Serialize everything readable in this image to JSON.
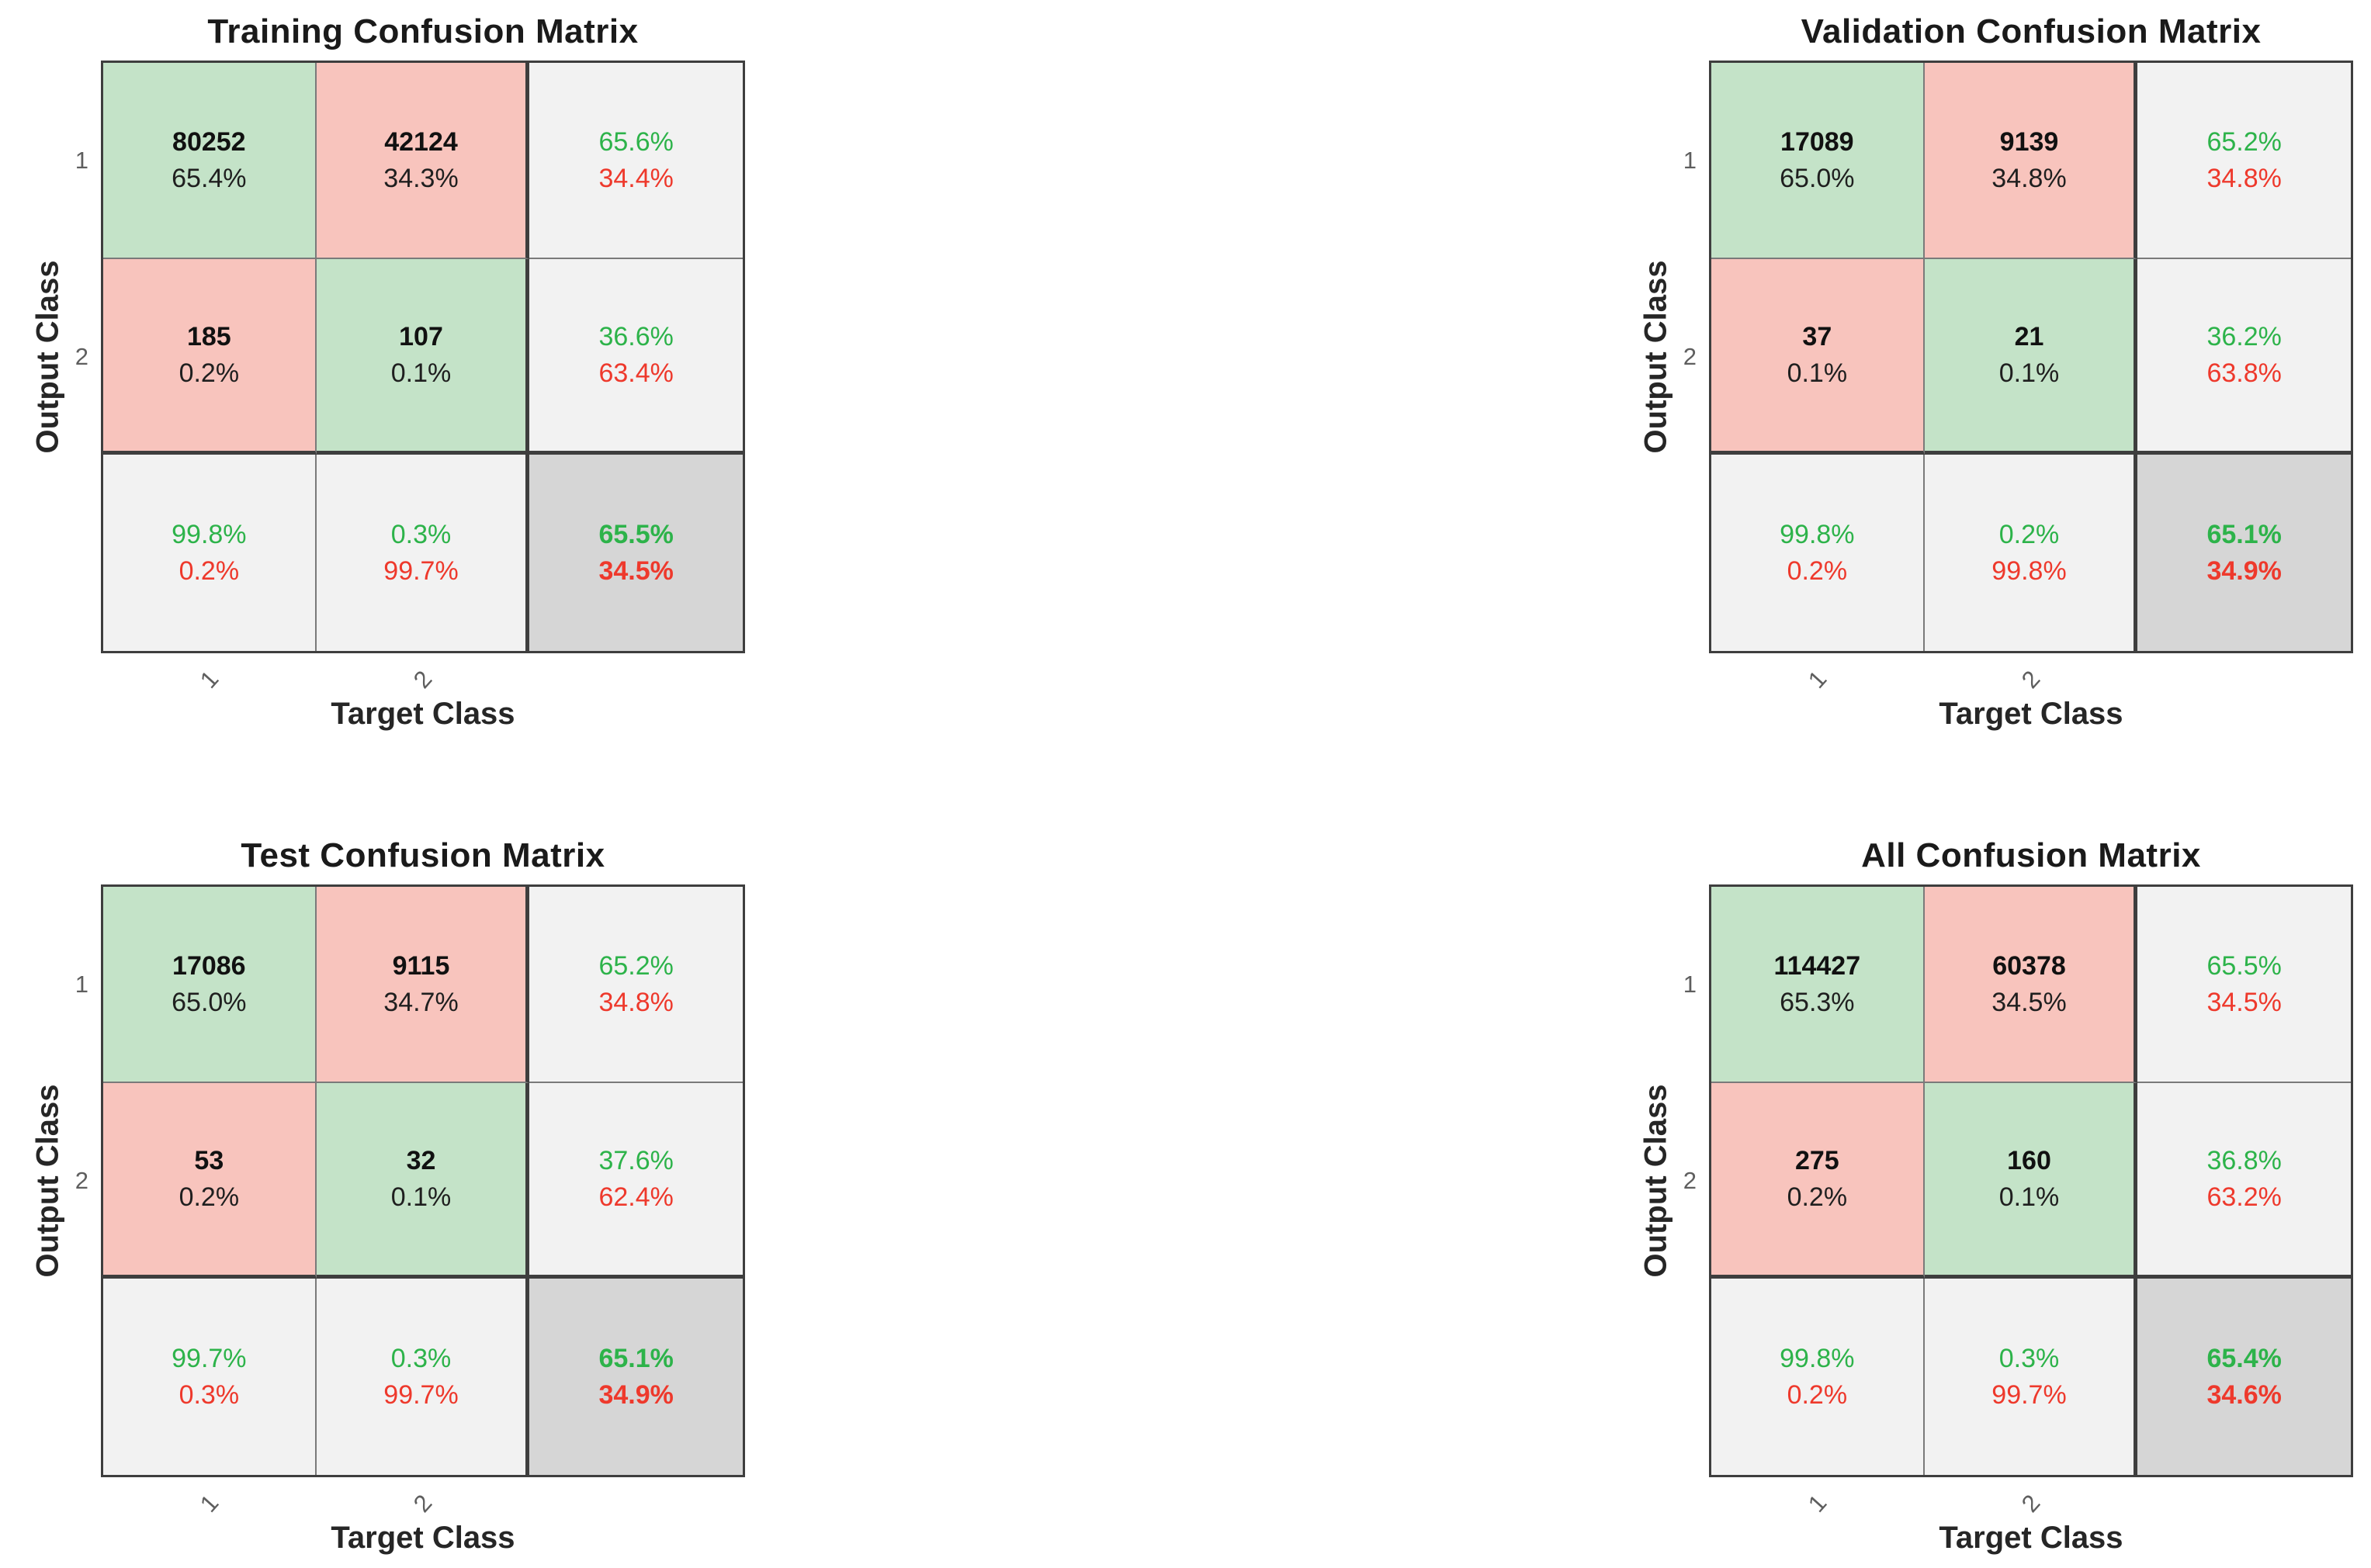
{
  "figure": {
    "background": "#ffffff",
    "description_titles": [
      "Training Confusion Matrix",
      "Validation Confusion Matrix",
      "Test Confusion Matrix",
      "All Confusion Matrix"
    ]
  },
  "colors": {
    "cell_correct_green": "#c4e3c8",
    "cell_incorrect_pink": "#f8c4bd",
    "cell_summary_gray": "#f2f2f2",
    "cell_total_gray": "#d6d6d6",
    "text_green": "#2db34a",
    "text_red": "#ee392c",
    "text_black": "#1a1a1a",
    "tick_gray": "#5e5e5e",
    "grid_line_thin": "#7a7a7a",
    "grid_line_thick": "#3e3e3e"
  },
  "matrices": [
    {
      "title": "Training Confusion Matrix",
      "xlabel": "Target Class",
      "ylabel": "Output Class",
      "row_ticks": [
        "1",
        "2"
      ],
      "col_ticks": [
        "1",
        "2"
      ],
      "cells": [
        {
          "line1": "80252",
          "line2": "65.4%"
        },
        {
          "line1": "42124",
          "line2": "34.3%"
        },
        {
          "line1": "65.6%",
          "line2": "34.4%"
        },
        {
          "line1": "185",
          "line2": "0.2%"
        },
        {
          "line1": "107",
          "line2": "0.1%"
        },
        {
          "line1": "36.6%",
          "line2": "63.4%"
        },
        {
          "line1": "99.8%",
          "line2": "0.2%"
        },
        {
          "line1": "0.3%",
          "line2": "99.7%"
        },
        {
          "line1": "65.5%",
          "line2": "34.5%"
        }
      ]
    },
    {
      "title": "Validation Confusion Matrix",
      "xlabel": "Target Class",
      "ylabel": "Output Class",
      "row_ticks": [
        "1",
        "2"
      ],
      "col_ticks": [
        "1",
        "2"
      ],
      "cells": [
        {
          "line1": "17089",
          "line2": "65.0%"
        },
        {
          "line1": "9139",
          "line2": "34.8%"
        },
        {
          "line1": "65.2%",
          "line2": "34.8%"
        },
        {
          "line1": "37",
          "line2": "0.1%"
        },
        {
          "line1": "21",
          "line2": "0.1%"
        },
        {
          "line1": "36.2%",
          "line2": "63.8%"
        },
        {
          "line1": "99.8%",
          "line2": "0.2%"
        },
        {
          "line1": "0.2%",
          "line2": "99.8%"
        },
        {
          "line1": "65.1%",
          "line2": "34.9%"
        }
      ]
    },
    {
      "title": "Test Confusion Matrix",
      "xlabel": "Target Class",
      "ylabel": "Output Class",
      "row_ticks": [
        "1",
        "2"
      ],
      "col_ticks": [
        "1",
        "2"
      ],
      "cells": [
        {
          "line1": "17086",
          "line2": "65.0%"
        },
        {
          "line1": "9115",
          "line2": "34.7%"
        },
        {
          "line1": "65.2%",
          "line2": "34.8%"
        },
        {
          "line1": "53",
          "line2": "0.2%"
        },
        {
          "line1": "32",
          "line2": "0.1%"
        },
        {
          "line1": "37.6%",
          "line2": "62.4%"
        },
        {
          "line1": "99.7%",
          "line2": "0.3%"
        },
        {
          "line1": "0.3%",
          "line2": "99.7%"
        },
        {
          "line1": "65.1%",
          "line2": "34.9%"
        }
      ]
    },
    {
      "title": "All Confusion Matrix",
      "xlabel": "Target Class",
      "ylabel": "Output Class",
      "row_ticks": [
        "1",
        "2"
      ],
      "col_ticks": [
        "1",
        "2"
      ],
      "cells": [
        {
          "line1": "114427",
          "line2": "65.3%"
        },
        {
          "line1": "60378",
          "line2": "34.5%"
        },
        {
          "line1": "65.5%",
          "line2": "34.5%"
        },
        {
          "line1": "275",
          "line2": "0.2%"
        },
        {
          "line1": "160",
          "line2": "0.1%"
        },
        {
          "line1": "36.8%",
          "line2": "63.2%"
        },
        {
          "line1": "99.8%",
          "line2": "0.2%"
        },
        {
          "line1": "0.3%",
          "line2": "99.7%"
        },
        {
          "line1": "65.4%",
          "line2": "34.6%"
        }
      ]
    }
  ],
  "chart_data": [
    {
      "type": "heatmap",
      "title": "Training Confusion Matrix",
      "xlabel": "Target Class",
      "ylabel": "Output Class",
      "classes": [
        "1",
        "2"
      ],
      "counts": [
        [
          80252,
          42124
        ],
        [
          185,
          107
        ]
      ],
      "count_pct": [
        [
          "65.4%",
          "34.3%"
        ],
        [
          "0.2%",
          "0.1%"
        ]
      ],
      "row_summary_green_red": [
        [
          "65.6%",
          "34.4%"
        ],
        [
          "36.6%",
          "63.4%"
        ]
      ],
      "col_summary_green_red": [
        [
          "99.8%",
          "0.2%"
        ],
        [
          "0.3%",
          "99.7%"
        ]
      ],
      "overall_green_red": [
        "65.5%",
        "34.5%"
      ]
    },
    {
      "type": "heatmap",
      "title": "Validation Confusion Matrix",
      "xlabel": "Target Class",
      "ylabel": "Output Class",
      "classes": [
        "1",
        "2"
      ],
      "counts": [
        [
          17089,
          9139
        ],
        [
          37,
          21
        ]
      ],
      "count_pct": [
        [
          "65.0%",
          "34.8%"
        ],
        [
          "0.1%",
          "0.1%"
        ]
      ],
      "row_summary_green_red": [
        [
          "65.2%",
          "34.8%"
        ],
        [
          "36.2%",
          "63.8%"
        ]
      ],
      "col_summary_green_red": [
        [
          "99.8%",
          "0.2%"
        ],
        [
          "0.2%",
          "99.8%"
        ]
      ],
      "overall_green_red": [
        "65.1%",
        "34.9%"
      ]
    },
    {
      "type": "heatmap",
      "title": "Test Confusion Matrix",
      "xlabel": "Target Class",
      "ylabel": "Output Class",
      "classes": [
        "1",
        "2"
      ],
      "counts": [
        [
          17086,
          9115
        ],
        [
          53,
          32
        ]
      ],
      "count_pct": [
        [
          "65.0%",
          "34.7%"
        ],
        [
          "0.2%",
          "0.1%"
        ]
      ],
      "row_summary_green_red": [
        [
          "65.2%",
          "34.8%"
        ],
        [
          "37.6%",
          "62.4%"
        ]
      ],
      "col_summary_green_red": [
        [
          "99.7%",
          "0.3%"
        ],
        [
          "0.3%",
          "99.7%"
        ]
      ],
      "overall_green_red": [
        "65.1%",
        "34.9%"
      ]
    },
    {
      "type": "heatmap",
      "title": "All Confusion Matrix",
      "xlabel": "Target Class",
      "ylabel": "Output Class",
      "classes": [
        "1",
        "2"
      ],
      "counts": [
        [
          114427,
          60378
        ],
        [
          275,
          160
        ]
      ],
      "count_pct": [
        [
          "65.3%",
          "34.5%"
        ],
        [
          "0.2%",
          "0.1%"
        ]
      ],
      "row_summary_green_red": [
        [
          "65.5%",
          "34.5%"
        ],
        [
          "36.8%",
          "63.2%"
        ]
      ],
      "col_summary_green_red": [
        [
          "99.8%",
          "0.2%"
        ],
        [
          "0.3%",
          "99.7%"
        ]
      ],
      "overall_green_red": [
        "65.4%",
        "34.6%"
      ]
    }
  ]
}
